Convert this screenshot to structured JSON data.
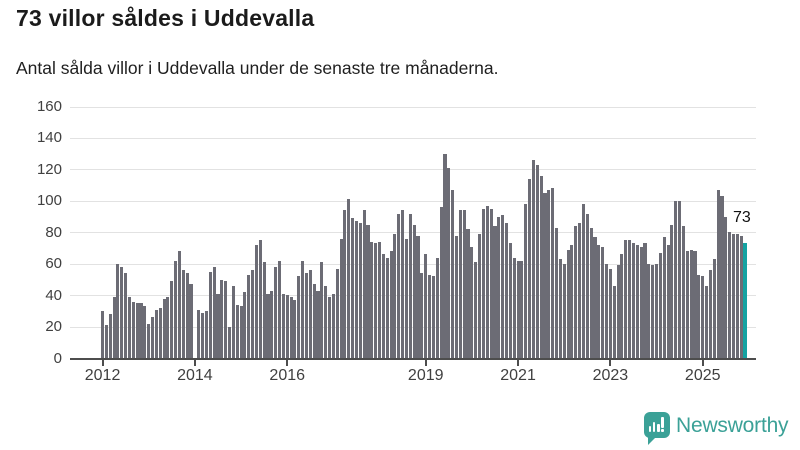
{
  "header": {
    "title": "73 villor såldes i Uddevalla",
    "subtitle": "Antal sålda villor i Uddevalla under de senaste tre månaderna."
  },
  "chart_data": {
    "type": "bar",
    "frequency": "monthly",
    "x_start": "2012-01",
    "x_end": "2025-12",
    "ylabel": "",
    "xlabel": "",
    "ylim": [
      0,
      160
    ],
    "yticks": [
      0,
      20,
      40,
      60,
      80,
      100,
      120,
      140,
      160
    ],
    "grid": true,
    "xticks": [
      {
        "label": "2012",
        "month_index": 0
      },
      {
        "label": "2014",
        "month_index": 24
      },
      {
        "label": "2016",
        "month_index": 48
      },
      {
        "label": "2019",
        "month_index": 84
      },
      {
        "label": "2021",
        "month_index": 108
      },
      {
        "label": "2023",
        "month_index": 132
      },
      {
        "label": "2025",
        "month_index": 156
      }
    ],
    "values": [
      30,
      21,
      28,
      39,
      60,
      58,
      54,
      39,
      36,
      35,
      35,
      33,
      22,
      26,
      31,
      32,
      38,
      39,
      49,
      62,
      68,
      56,
      54,
      47,
      0,
      31,
      29,
      30,
      55,
      58,
      41,
      50,
      49,
      20,
      46,
      34,
      33,
      42,
      53,
      56,
      72,
      75,
      61,
      41,
      43,
      58,
      62,
      41,
      40,
      39,
      37,
      52,
      62,
      54,
      56,
      47,
      43,
      61,
      46,
      39,
      41,
      57,
      76,
      94,
      101,
      89,
      87,
      86,
      94,
      85,
      74,
      73,
      74,
      66,
      64,
      68,
      79,
      92,
      94,
      76,
      92,
      85,
      78,
      54,
      66,
      53,
      52,
      64,
      96,
      130,
      121,
      107,
      78,
      94,
      94,
      82,
      71,
      61,
      79,
      95,
      97,
      95,
      84,
      90,
      91,
      86,
      73,
      64,
      62,
      62,
      98,
      114,
      126,
      123,
      116,
      105,
      107,
      108,
      83,
      63,
      60,
      69,
      72,
      84,
      86,
      98,
      92,
      83,
      77,
      72,
      71,
      60,
      57,
      46,
      59,
      66,
      75,
      75,
      73,
      72,
      71,
      73,
      60,
      59,
      60,
      67,
      77,
      72,
      85,
      100,
      100,
      84,
      68,
      69,
      68,
      53,
      52,
      46,
      56,
      63,
      107,
      103,
      90,
      80,
      79,
      79,
      78,
      73
    ],
    "highlight": {
      "index": 167,
      "label": "73"
    },
    "colors": {
      "bar": "#6c6c75",
      "highlight": "#14a3a2",
      "grid": "#e2e2e2",
      "axis": "#4d4d4d",
      "text": "#1b1b1b",
      "axis_text": "#404040"
    }
  },
  "footer": {
    "brand": "Newsworthy",
    "brand_color": "#3ba197",
    "logo_icon": "bar-chart-speech-bubble-icon"
  }
}
